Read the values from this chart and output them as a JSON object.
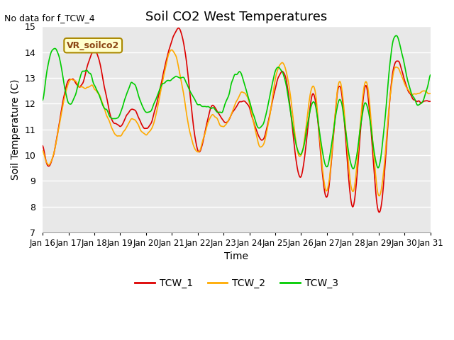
{
  "title": "Soil CO2 West Temperatures",
  "xlabel": "Time",
  "ylabel": "Soil Temperature (C)",
  "no_data_text": "No data for f_TCW_4",
  "vr_label": "VR_soilco2",
  "ylim": [
    7.0,
    15.0
  ],
  "yticks": [
    7.0,
    8.0,
    9.0,
    10.0,
    11.0,
    12.0,
    13.0,
    14.0,
    15.0
  ],
  "xtick_labels": [
    "Jan 16",
    "Jan 17",
    "Jan 18",
    "Jan 19",
    "Jan 20",
    "Jan 21",
    "Jan 22",
    "Jan 23",
    "Jan 24",
    "Jan 25",
    "Jan 26",
    "Jan 27",
    "Jan 28",
    "Jan 29",
    "Jan 30",
    "Jan 31"
  ],
  "colors": {
    "TCW_1": "#dd0000",
    "TCW_2": "#ffaa00",
    "TCW_3": "#00cc00"
  },
  "background_color": "#e8e8e8",
  "legend_entries": [
    "TCW_1",
    "TCW_2",
    "TCW_3"
  ]
}
